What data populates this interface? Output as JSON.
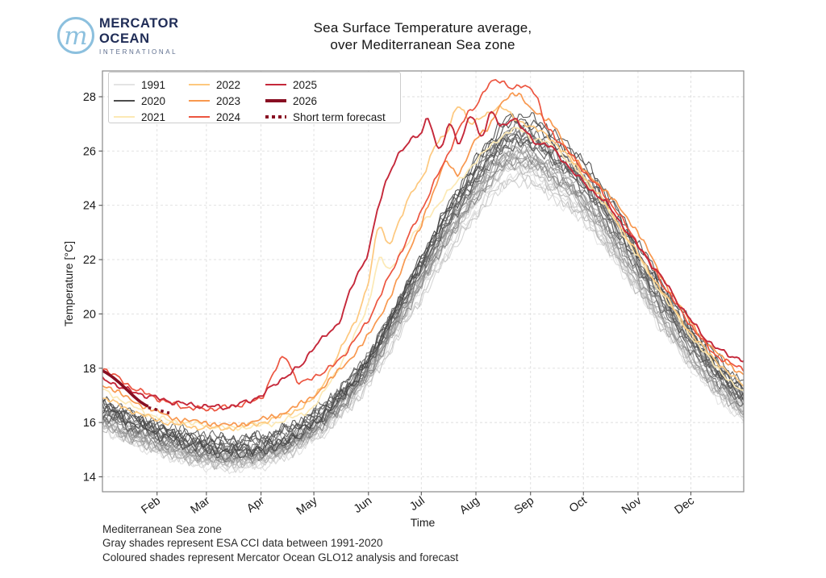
{
  "header": {
    "brand_line1": "MERCATOR",
    "brand_line2": "OCEAN",
    "brand_line3": "INTERNATIONAL",
    "logo_mark_glyph": "m",
    "logo_blue": "#8cc0de",
    "brand_navy": "#202d57",
    "title_line1": "Sea Surface Temperature average,",
    "title_line2": "over Mediterranean Sea zone"
  },
  "footer": {
    "line1": "Mediterranean Sea zone",
    "line2": "Gray shades represent ESA CCI data between 1991-2020",
    "line3": "Coloured shades represent Mercator Ocean GLO12 analysis and forecast"
  },
  "chart_data": {
    "type": "line",
    "title": "Sea Surface Temperature average, over Mediterranean Sea zone",
    "xlabel": "Time",
    "ylabel": "Temperature [°C]",
    "x_unit": "day_of_year",
    "xlim_days": [
      1,
      365
    ],
    "ylim": [
      13.45,
      28.95
    ],
    "yticks": [
      14,
      16,
      18,
      20,
      22,
      24,
      26,
      28
    ],
    "xticks": {
      "labels": [
        "Feb",
        "Mar",
        "Apr",
        "May",
        "Jun",
        "Jul",
        "Aug",
        "Sep",
        "Oct",
        "Nov",
        "Dec"
      ],
      "days": [
        32,
        60,
        91,
        121,
        152,
        182,
        213,
        244,
        274,
        305,
        335
      ]
    },
    "grid": "dashed",
    "spine_color": "#8a8a8a",
    "grid_color": "#dedede",
    "legend": {
      "position": "upper-left",
      "entries": [
        {
          "label": "1991",
          "color": "#e3e3e3",
          "width": 1.6
        },
        {
          "label": "2020",
          "color": "#4d4d4d",
          "width": 1.6
        },
        {
          "label": "2021",
          "color": "#fce9b5",
          "width": 2
        },
        {
          "label": "2022",
          "color": "#fdc87e",
          "width": 2
        },
        {
          "label": "2023",
          "color": "#f8984f",
          "width": 2
        },
        {
          "label": "2024",
          "color": "#ec5540",
          "width": 2
        },
        {
          "label": "2025",
          "color": "#c5283a",
          "width": 2
        },
        {
          "label": "2026",
          "color": "#880e22",
          "width": 4
        },
        {
          "label": "Short term forecast",
          "color": "#880e22",
          "width": 4,
          "dash": "dotted"
        }
      ]
    },
    "climatology": {
      "description": "ESA CCI yearly lines 1991-2020 (gray shades, light=old, dark=recent)",
      "first_year": 1991,
      "last_year": 2020,
      "n_years": 30,
      "color_light": "#e3e3e3",
      "color_dark": "#414141",
      "days": [
        1,
        15,
        32,
        46,
        60,
        74,
        91,
        105,
        121,
        135,
        152,
        166,
        182,
        196,
        213,
        227,
        235,
        244,
        258,
        274,
        288,
        305,
        319,
        335,
        349,
        365
      ],
      "mean": [
        16.3,
        15.9,
        15.5,
        15.2,
        15.0,
        14.9,
        15.0,
        15.3,
        15.9,
        16.7,
        18.0,
        19.6,
        21.4,
        23.0,
        24.6,
        25.7,
        26.0,
        25.9,
        25.3,
        24.4,
        23.2,
        21.6,
        20.2,
        18.8,
        17.7,
        16.8
      ],
      "spread_winter": 0.55,
      "spread_summer": 1.0
    },
    "series": [
      {
        "name": "2021",
        "color": "#fce9b5",
        "width": 1.7,
        "days": [
          1,
          15,
          32,
          46,
          60,
          74,
          91,
          105,
          121,
          135,
          145,
          152,
          158,
          164,
          170,
          182,
          196,
          213,
          227,
          238,
          244,
          258,
          274,
          288,
          305,
          319,
          335,
          349,
          365
        ],
        "values": [
          17.2,
          16.7,
          16.2,
          16.0,
          15.9,
          15.8,
          15.9,
          16.1,
          16.6,
          18.0,
          19.3,
          20.4,
          22.0,
          21.6,
          22.3,
          23.3,
          24.4,
          25.6,
          26.5,
          26.8,
          26.5,
          26.1,
          25.0,
          23.8,
          22.1,
          20.7,
          19.2,
          18.1,
          17.1
        ]
      },
      {
        "name": "2022",
        "color": "#fdc87e",
        "width": 1.7,
        "days": [
          1,
          15,
          32,
          46,
          60,
          74,
          91,
          105,
          121,
          135,
          145,
          152,
          158,
          163,
          170,
          177,
          182,
          190,
          196,
          203,
          210,
          217,
          227,
          235,
          244,
          258,
          274,
          288,
          305,
          319,
          335,
          349,
          365
        ],
        "values": [
          16.9,
          16.5,
          16.1,
          15.9,
          15.8,
          15.8,
          16.0,
          16.3,
          16.9,
          18.5,
          19.8,
          21.2,
          23.2,
          22.6,
          23.5,
          24.5,
          25.0,
          26.2,
          26.6,
          27.7,
          27.0,
          27.3,
          27.6,
          27.2,
          26.9,
          26.3,
          25.1,
          23.9,
          22.2,
          20.8,
          19.3,
          18.3,
          17.4
        ]
      },
      {
        "name": "2023",
        "color": "#f8984f",
        "width": 1.7,
        "days": [
          1,
          15,
          32,
          46,
          60,
          74,
          91,
          105,
          121,
          135,
          152,
          166,
          182,
          190,
          196,
          203,
          213,
          220,
          227,
          237,
          244,
          251,
          258,
          266,
          274,
          288,
          305,
          319,
          335,
          349,
          365
        ],
        "values": [
          17.4,
          16.9,
          16.4,
          16.1,
          16.0,
          15.9,
          16.1,
          16.4,
          17.0,
          17.9,
          19.2,
          20.9,
          23.3,
          24.6,
          25.6,
          25.2,
          26.4,
          26.9,
          27.7,
          28.1,
          27.6,
          27.2,
          26.9,
          25.9,
          25.3,
          24.4,
          23.0,
          21.3,
          19.7,
          18.6,
          17.8
        ]
      },
      {
        "name": "2024",
        "color": "#ec5540",
        "width": 1.7,
        "days": [
          1,
          15,
          32,
          46,
          60,
          74,
          91,
          98,
          105,
          112,
          121,
          135,
          152,
          166,
          182,
          196,
          206,
          213,
          220,
          227,
          234,
          241,
          247,
          252,
          258,
          274,
          288,
          305,
          319,
          335,
          349,
          365
        ],
        "values": [
          18.0,
          17.4,
          16.9,
          16.6,
          16.5,
          16.6,
          16.9,
          17.8,
          18.4,
          17.5,
          17.7,
          18.3,
          19.8,
          21.7,
          23.8,
          25.7,
          27.1,
          27.7,
          28.4,
          28.6,
          28.3,
          28.4,
          28.1,
          27.0,
          26.5,
          25.3,
          24.2,
          22.6,
          21.1,
          19.6,
          18.5,
          18.0
        ]
      },
      {
        "name": "2025",
        "color": "#c5283a",
        "width": 1.9,
        "days": [
          1,
          15,
          32,
          46,
          60,
          74,
          91,
          105,
          114,
          121,
          128,
          135,
          142,
          149,
          152,
          157,
          163,
          168,
          175,
          182,
          186,
          192,
          198,
          204,
          210,
          216,
          222,
          227,
          234,
          241,
          248,
          254,
          262,
          270,
          278,
          288,
          297,
          305,
          313,
          321,
          329,
          337,
          345,
          353,
          361,
          365
        ],
        "values": [
          17.6,
          17.2,
          16.9,
          16.7,
          16.6,
          16.6,
          17.0,
          17.7,
          18.1,
          18.8,
          19.2,
          19.7,
          20.9,
          21.8,
          22.4,
          23.8,
          25.0,
          25.8,
          26.3,
          26.7,
          27.2,
          26.0,
          27.0,
          26.3,
          27.3,
          26.6,
          27.4,
          26.9,
          27.2,
          26.7,
          26.3,
          26.2,
          25.7,
          25.1,
          24.6,
          24.0,
          23.2,
          22.5,
          21.8,
          21.1,
          20.3,
          19.6,
          19.0,
          18.6,
          18.4,
          18.3
        ]
      },
      {
        "name": "2026",
        "color": "#880e22",
        "width": 3.6,
        "smooth": true,
        "days": [
          1,
          5,
          10,
          15,
          20,
          24,
          27
        ],
        "values": [
          17.9,
          17.75,
          17.5,
          17.2,
          16.9,
          16.7,
          16.6
        ]
      },
      {
        "name": "Short term forecast",
        "color": "#880e22",
        "width": 3.6,
        "dash": "dotted",
        "smooth": true,
        "days": [
          27,
          30,
          33,
          36,
          39
        ],
        "values": [
          16.55,
          16.5,
          16.45,
          16.4,
          16.35
        ]
      }
    ]
  }
}
